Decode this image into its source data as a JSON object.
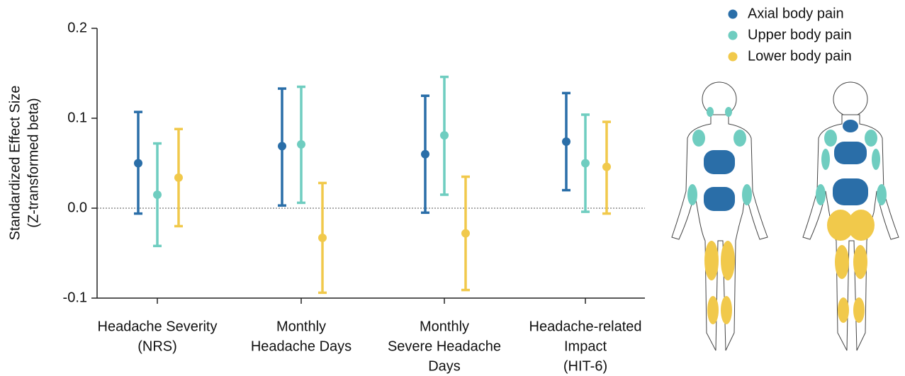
{
  "chart_data": {
    "type": "errorbar",
    "ylabel": [
      "Standardized Effect Size",
      "(Z-transformed beta)"
    ],
    "categories": [
      [
        "Headache Severity",
        "(NRS)"
      ],
      [
        "Monthly",
        "Headache Days"
      ],
      [
        "Monthly",
        "Severe Headache",
        "Days"
      ],
      [
        "Headache-related",
        "Impact",
        "(HIT-6)"
      ]
    ],
    "series": [
      {
        "name": "Axial body pain",
        "color": "#2a6ea8",
        "values": [
          0.05,
          0.069,
          0.06,
          0.074
        ],
        "lower": [
          -0.006,
          0.003,
          -0.005,
          0.02
        ],
        "upper": [
          0.107,
          0.133,
          0.125,
          0.128
        ]
      },
      {
        "name": "Upper body pain",
        "color": "#6fcdc0",
        "values": [
          0.015,
          0.071,
          0.081,
          0.05
        ],
        "lower": [
          -0.042,
          0.006,
          0.015,
          -0.004
        ],
        "upper": [
          0.072,
          0.135,
          0.146,
          0.104
        ]
      },
      {
        "name": "Lower body pain",
        "color": "#f1c94b",
        "values": [
          0.034,
          -0.033,
          -0.028,
          0.046
        ],
        "lower": [
          -0.02,
          -0.094,
          -0.091,
          -0.006
        ],
        "upper": [
          0.088,
          0.028,
          0.035,
          0.096
        ]
      }
    ],
    "ylim": [
      -0.1,
      0.2
    ],
    "yticks": [
      0.2,
      0.1,
      {
        "value": 0,
        "label": "0.0"
      },
      -0.1
    ],
    "zero_line": true,
    "legend": "top-right"
  }
}
